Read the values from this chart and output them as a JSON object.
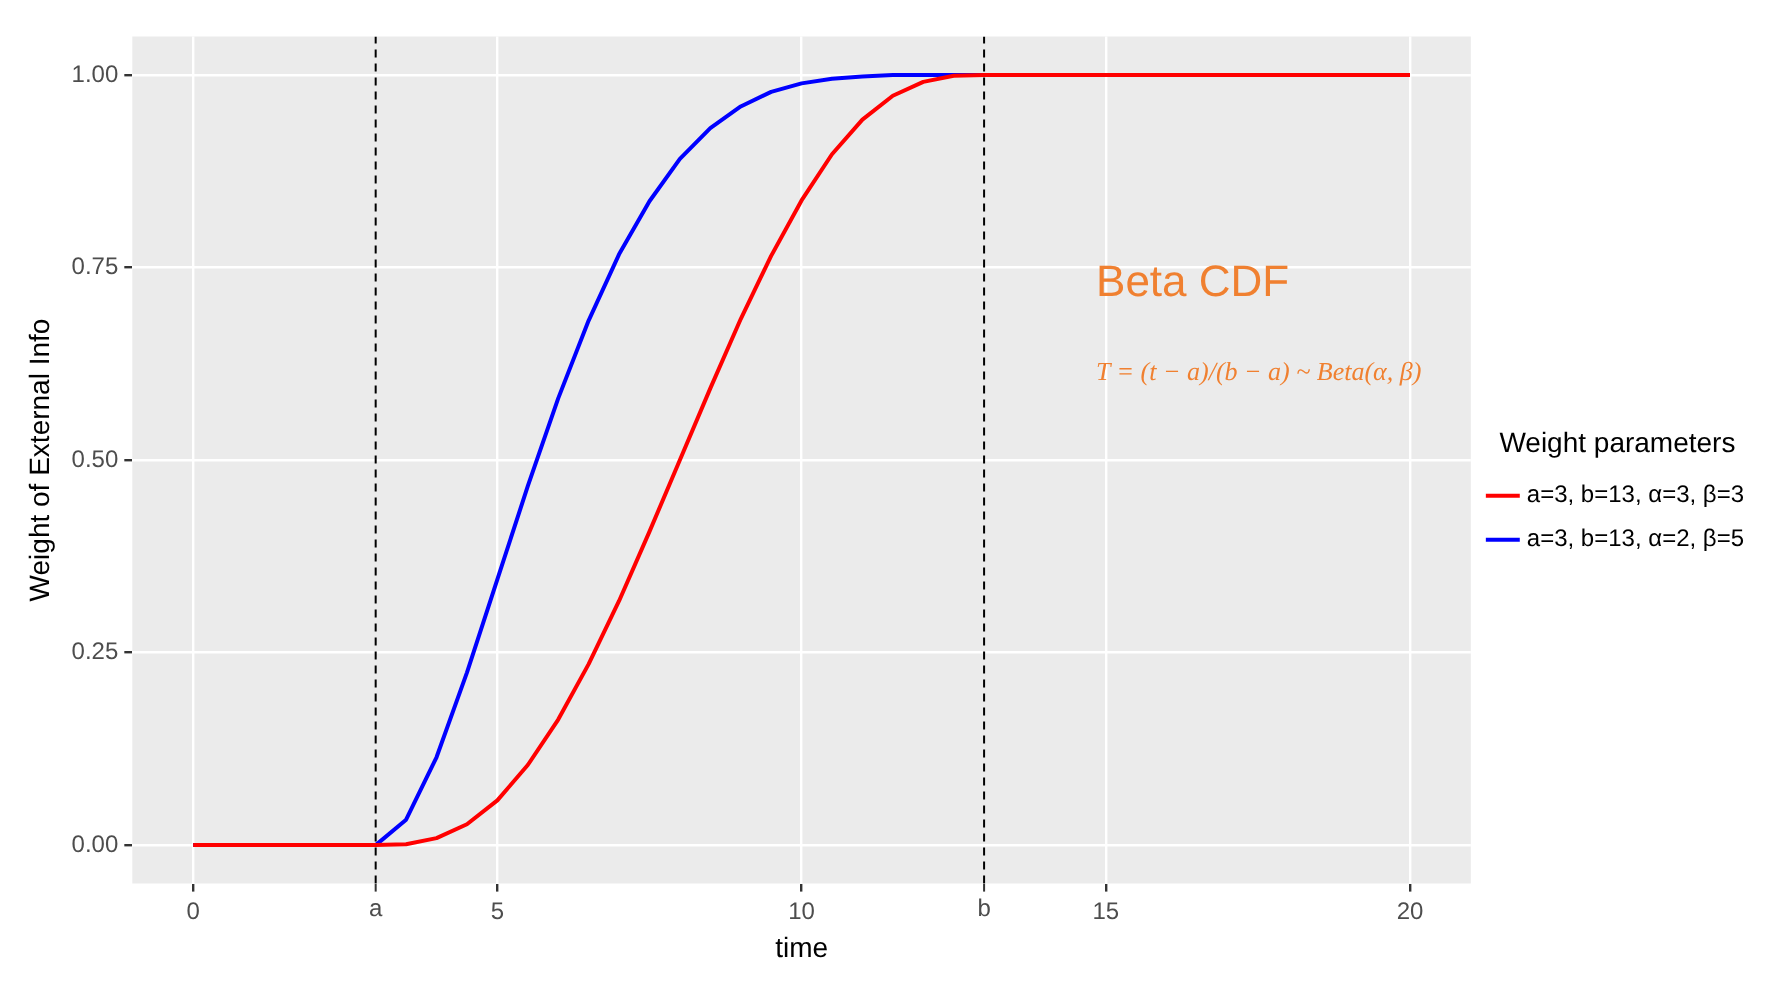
{
  "chart_data": {
    "type": "line",
    "xlabel": "time",
    "ylabel": "Weight of External Info",
    "legend_title": "Weight parameters",
    "x": [
      0,
      3,
      3.5,
      4,
      4.5,
      5,
      5.5,
      6,
      6.5,
      7,
      7.5,
      8,
      8.5,
      9,
      9.5,
      10,
      10.5,
      11,
      11.5,
      12,
      12.5,
      13,
      20
    ],
    "series": [
      {
        "name": "a=3, b=13, α=3, β=3",
        "color": "#ff0000",
        "values": [
          0,
          0,
          0.001,
          0.009,
          0.027,
          0.058,
          0.104,
          0.163,
          0.235,
          0.317,
          0.407,
          0.5,
          0.593,
          0.683,
          0.765,
          0.837,
          0.897,
          0.942,
          0.973,
          0.991,
          0.999,
          1,
          1
        ]
      },
      {
        "name": "a=3, b=13, α=2, β=5",
        "color": "#0000ff",
        "values": [
          0,
          0,
          0.033,
          0.114,
          0.224,
          0.345,
          0.466,
          0.58,
          0.681,
          0.767,
          0.836,
          0.891,
          0.931,
          0.959,
          0.978,
          0.989,
          0.995,
          0.998,
          1,
          1,
          1,
          1,
          1
        ]
      }
    ],
    "xlim": [
      -1,
      21
    ],
    "xticks": [
      0,
      5,
      10,
      15,
      20
    ],
    "ylim": [
      -0.05,
      1.05
    ],
    "yticks": [
      {
        "value": 0,
        "label": "0.00"
      },
      {
        "value": 0.25,
        "label": "0.25"
      },
      {
        "value": 0.5,
        "label": "0.50"
      },
      {
        "value": 0.75,
        "label": "0.75"
      },
      {
        "value": 1,
        "label": "1.00"
      }
    ],
    "ref_lines": [
      {
        "axis": "x",
        "value": 3,
        "label": "a",
        "line_style": "dashed",
        "color": "#000000"
      },
      {
        "axis": "x",
        "value": 13,
        "label": "b",
        "line_style": "dashed",
        "color": "#000000"
      }
    ],
    "annotations": [
      "Beta CDF",
      "T = (t − a)/(b − a) ~ Beta(α, β)"
    ],
    "grid": true,
    "legend": "right",
    "marker": "none",
    "line_style": "solid"
  }
}
